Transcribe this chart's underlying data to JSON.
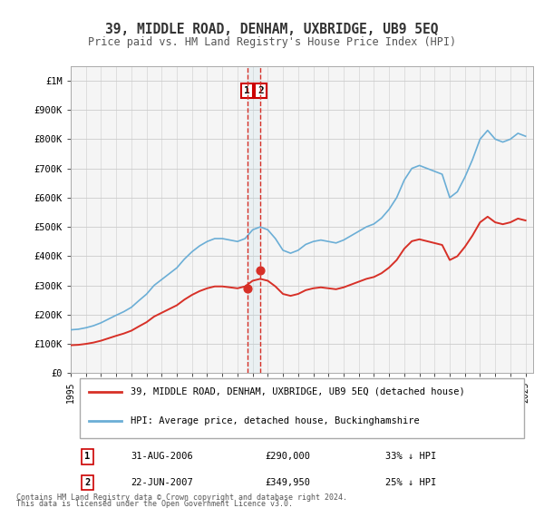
{
  "title": "39, MIDDLE ROAD, DENHAM, UXBRIDGE, UB9 5EQ",
  "subtitle": "Price paid vs. HM Land Registry's House Price Index (HPI)",
  "legend_entry1": "39, MIDDLE ROAD, DENHAM, UXBRIDGE, UB9 5EQ (detached house)",
  "legend_entry2": "HPI: Average price, detached house, Buckinghamshire",
  "footer1": "Contains HM Land Registry data © Crown copyright and database right 2024.",
  "footer2": "This data is licensed under the Open Government Licence v3.0.",
  "sale1_date": "31-AUG-2006",
  "sale1_price": 290000,
  "sale1_pct": "33% ↓ HPI",
  "sale2_date": "22-JUN-2007",
  "sale2_price": 349950,
  "sale2_pct": "25% ↓ HPI",
  "sale1_x": 2006.667,
  "sale2_x": 2007.472,
  "hpi_color": "#6baed6",
  "price_color": "#d73027",
  "dot_color": "#d73027",
  "vline_color": "#d73027",
  "grid_color": "#cccccc",
  "bg_color": "#ffffff",
  "plot_bg": "#f5f5f5",
  "ylim": [
    0,
    1050000
  ],
  "xlim_start": 1995.0,
  "xlim_end": 2025.5,
  "yticks": [
    0,
    100000,
    200000,
    300000,
    400000,
    500000,
    600000,
    700000,
    800000,
    900000,
    1000000
  ],
  "ytick_labels": [
    "£0",
    "£100K",
    "£200K",
    "£300K",
    "£400K",
    "£500K",
    "£600K",
    "£700K",
    "£800K",
    "£900K",
    "£1M"
  ],
  "xticks": [
    1995,
    1996,
    1997,
    1998,
    1999,
    2000,
    2001,
    2002,
    2003,
    2004,
    2005,
    2006,
    2007,
    2008,
    2009,
    2010,
    2011,
    2012,
    2013,
    2014,
    2015,
    2016,
    2017,
    2018,
    2019,
    2020,
    2021,
    2022,
    2023,
    2024,
    2025
  ]
}
